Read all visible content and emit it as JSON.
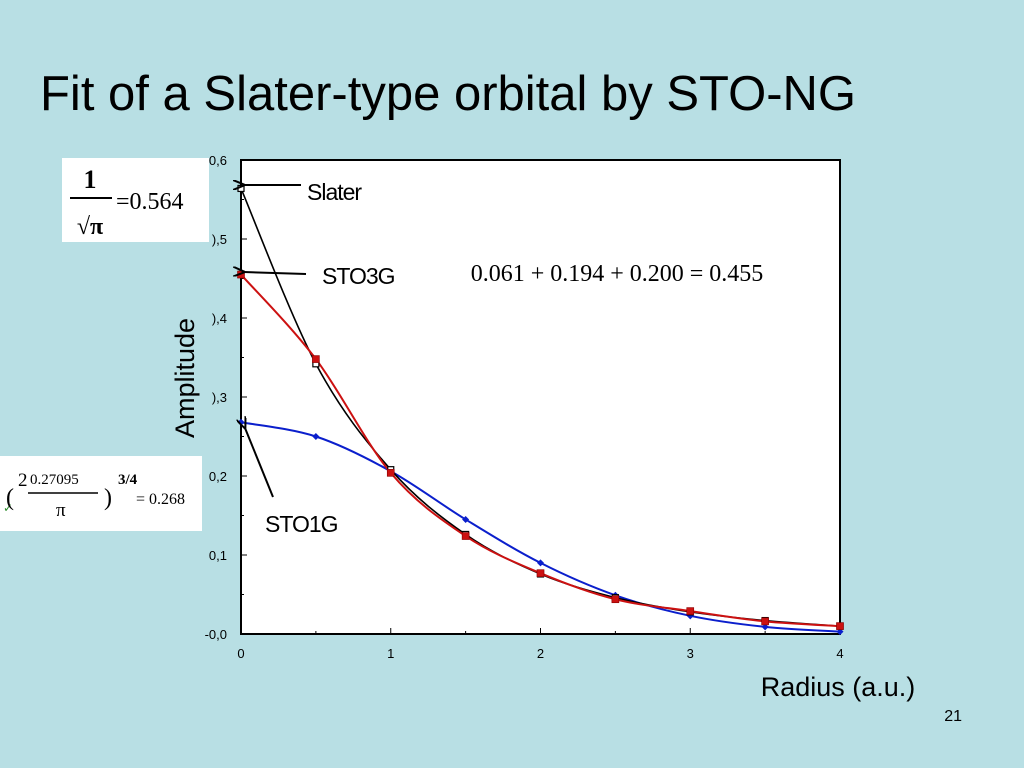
{
  "slide": {
    "title": "Fit of a Slater-type orbital by STO-NG",
    "page_number": "21"
  },
  "formulas": {
    "inv_sqrt_pi_num": "1",
    "inv_sqrt_pi_den": "√π",
    "inv_sqrt_pi_val": "=0.564",
    "sum_eq": "0.061 + 0.194 + 0.200 = 0.455",
    "sto1g_paren_open": "(",
    "sto1g_two": "2",
    "sto1g_alpha": "0.27095",
    "sto1g_pi": "π",
    "sto1g_paren_close": ")",
    "sto1g_exp": "3/4",
    "sto1g_val": "= 0.268"
  },
  "callouts": {
    "slater": "Slater",
    "sto3g": "STO3G",
    "sto1g": "STO1G"
  },
  "colors": {
    "background": "#b8dfe4",
    "slater": "#000000",
    "sto3g": "#cc1111",
    "sto1g": "#0b1fcc"
  },
  "chart_data": {
    "type": "line",
    "xlabel": "Radius (a.u.)",
    "ylabel": "Amplitude",
    "xlim": [
      0,
      4
    ],
    "ylim": [
      0,
      0.6
    ],
    "x_ticks": [
      0,
      1,
      2,
      3,
      4
    ],
    "x_tick_labels": [
      "0",
      "1",
      "2",
      "3",
      "4"
    ],
    "y_ticks": [
      0,
      0.1,
      0.2,
      0.3,
      0.4,
      0.5,
      0.6
    ],
    "y_tick_labels": [
      "-0,0",
      "0,1",
      "0,2",
      "),3",
      "),4",
      "),5",
      "0,6"
    ],
    "grid": false,
    "series": [
      {
        "key": "slater",
        "x": [
          0,
          0.5,
          1,
          1.5,
          2,
          2.5,
          3,
          3.5,
          4
        ],
        "y": [
          0.564,
          0.342,
          0.208,
          0.126,
          0.076,
          0.046,
          0.028,
          0.017,
          0.01
        ]
      },
      {
        "key": "sto3g",
        "x": [
          0,
          0.5,
          1,
          1.5,
          2,
          2.5,
          3,
          3.5,
          4
        ],
        "y": [
          0.455,
          0.348,
          0.204,
          0.124,
          0.077,
          0.044,
          0.029,
          0.016,
          0.01
        ]
      },
      {
        "key": "sto1g",
        "x": [
          0,
          0.5,
          1,
          1.5,
          2,
          2.5,
          3,
          3.5,
          4
        ],
        "y": [
          0.268,
          0.25,
          0.206,
          0.145,
          0.09,
          0.049,
          0.023,
          0.009,
          0.003
        ]
      }
    ]
  }
}
